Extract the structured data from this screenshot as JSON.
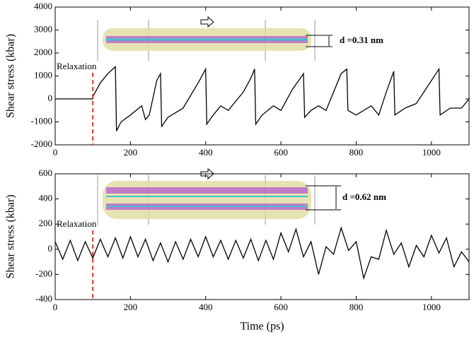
{
  "chart_data": [
    {
      "type": "line",
      "ylabel": "Shear stress (kbar)",
      "xlim": [
        0,
        1100
      ],
      "xticks": [
        0,
        200,
        400,
        600,
        800,
        1000
      ],
      "ylim": [
        -2000,
        4000
      ],
      "yticks": [
        -2000,
        -1000,
        0,
        1000,
        2000,
        3000,
        4000
      ],
      "color": "#000000",
      "marker_x": 100,
      "marker_color": "#e03a2a",
      "marker_label": "Relaxation",
      "inset_label": "d =0.31 nm",
      "x": [
        0,
        100,
        100,
        120,
        140,
        160,
        163,
        175,
        200,
        230,
        240,
        250,
        270,
        280,
        283,
        300,
        340,
        380,
        400,
        403,
        420,
        440,
        460,
        500,
        520,
        530,
        533,
        550,
        580,
        600,
        630,
        660,
        663,
        680,
        700,
        720,
        760,
        775,
        778,
        800,
        840,
        860,
        880,
        900,
        903,
        930,
        960,
        1000,
        1020,
        1023,
        1050,
        1080,
        1100
      ],
      "values": [
        0,
        0,
        100,
        700,
        1100,
        1400,
        -1400,
        -1000,
        -700,
        -300,
        -900,
        -700,
        800,
        1100,
        -1200,
        -800,
        -400,
        700,
        1300,
        -1100,
        -700,
        -300,
        -500,
        300,
        900,
        1300,
        -1100,
        -700,
        -300,
        -500,
        400,
        1100,
        -800,
        -500,
        -300,
        -500,
        1100,
        1300,
        -500,
        -700,
        -300,
        -700,
        300,
        1200,
        -700,
        -400,
        -200,
        800,
        1300,
        -700,
        -400,
        -400,
        0
      ]
    },
    {
      "type": "line",
      "xlabel": "Time (ps)",
      "ylabel": "Shear stress (kbar)",
      "xlim": [
        0,
        1100
      ],
      "xticks": [
        0,
        200,
        400,
        600,
        800,
        1000
      ],
      "ylim": [
        -400,
        600
      ],
      "yticks": [
        -400,
        -200,
        0,
        200,
        400,
        600
      ],
      "color": "#000000",
      "marker_x": 100,
      "marker_color": "#e03a2a",
      "marker_label": "Relaxation",
      "inset_label": "d =0.62 nm",
      "x": [
        0,
        20,
        40,
        60,
        80,
        100,
        120,
        140,
        160,
        180,
        200,
        220,
        240,
        260,
        280,
        300,
        320,
        340,
        360,
        380,
        400,
        420,
        440,
        460,
        480,
        500,
        520,
        540,
        560,
        580,
        600,
        620,
        640,
        660,
        680,
        700,
        720,
        740,
        760,
        780,
        800,
        820,
        840,
        860,
        880,
        900,
        920,
        940,
        960,
        980,
        1000,
        1020,
        1040,
        1060,
        1080,
        1100
      ],
      "values": [
        60,
        -80,
        70,
        -90,
        60,
        -70,
        80,
        -60,
        90,
        -70,
        100,
        -60,
        80,
        -90,
        50,
        -100,
        60,
        -80,
        80,
        -60,
        100,
        -60,
        70,
        -80,
        70,
        -70,
        80,
        -90,
        70,
        -80,
        130,
        -20,
        160,
        -60,
        60,
        -200,
        20,
        -40,
        170,
        -10,
        60,
        -230,
        -60,
        -80,
        150,
        -40,
        50,
        -140,
        30,
        -60,
        110,
        -30,
        90,
        -140,
        -20,
        -100
      ]
    }
  ]
}
